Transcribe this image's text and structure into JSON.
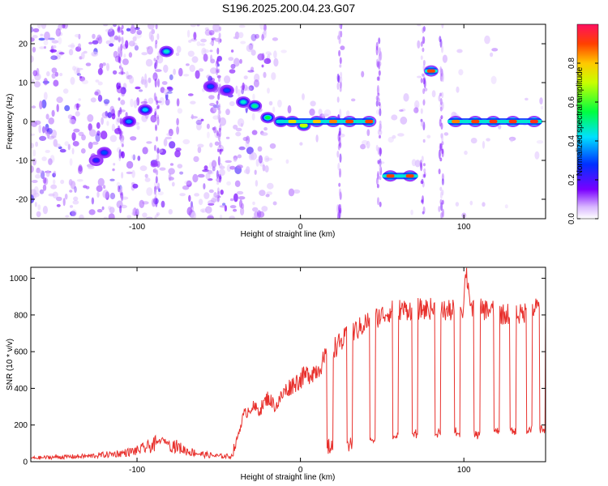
{
  "title": "S196.2025.200.04.23.G07",
  "colors": {
    "snr_line": "#e8302c",
    "axis": "#000000",
    "background": "#ffffff"
  },
  "chart_data": [
    {
      "type": "heatmap",
      "xlabel": "Height of straight line (km)",
      "ylabel": "Frequency (Hz)",
      "xlim": [
        -165,
        150
      ],
      "ylim": [
        -25,
        25
      ],
      "xticks": [
        -100,
        0,
        100
      ],
      "yticks": [
        -20,
        -10,
        0,
        10,
        20
      ],
      "colorbar": {
        "label": "Normalized spectral amplitude",
        "range": [
          0,
          1
        ],
        "ticks": [
          0.0,
          0.2,
          0.4,
          0.6,
          0.8
        ],
        "colormap": "rainbow"
      },
      "ridge": {
        "note": "dominant frequency track (x in km, y in Hz, amplitude 0-1)",
        "points": [
          [
            -125,
            -10,
            0.25
          ],
          [
            -120,
            -8,
            0.3
          ],
          [
            -105,
            0,
            0.35
          ],
          [
            -95,
            3,
            0.4
          ],
          [
            -82,
            18,
            0.45
          ],
          [
            -55,
            9,
            0.3
          ],
          [
            -45,
            8,
            0.3
          ],
          [
            -35,
            5,
            0.45
          ],
          [
            -28,
            4,
            0.5
          ],
          [
            -20,
            1,
            0.55
          ],
          [
            -12,
            0,
            0.6
          ],
          [
            -5,
            0,
            0.75
          ],
          [
            2,
            -1,
            0.7
          ],
          [
            10,
            0,
            0.8
          ],
          [
            20,
            0,
            0.85
          ],
          [
            30,
            0,
            0.9
          ],
          [
            42,
            0,
            0.9
          ],
          [
            55,
            -14,
            0.9
          ],
          [
            67,
            -14,
            0.9
          ],
          [
            80,
            13,
            0.9
          ],
          [
            95,
            0,
            0.85
          ],
          [
            107,
            0,
            0.9
          ],
          [
            118,
            0,
            0.92
          ],
          [
            130,
            0,
            0.92
          ],
          [
            143,
            0,
            0.93
          ]
        ]
      }
    },
    {
      "type": "line",
      "xlabel": "Height of straight line (km)",
      "ylabel": "SNR (10 * v/v)",
      "xlim": [
        -165,
        150
      ],
      "ylim": [
        0,
        1060
      ],
      "xticks": [
        -100,
        0,
        100
      ],
      "yticks": [
        0,
        200,
        400,
        600,
        800,
        1000
      ],
      "series": [
        {
          "x": [
            -165,
            -150,
            -130,
            -110,
            -100,
            -90,
            -85,
            -80,
            -75,
            -70,
            -60,
            -50,
            -42,
            -38,
            -35,
            -30,
            -25,
            -20,
            -15,
            -10,
            -5,
            0,
            5,
            10,
            15,
            20,
            25,
            30,
            35,
            40,
            45,
            50,
            55,
            60,
            65,
            70,
            75,
            80,
            85,
            90,
            95,
            100,
            101,
            105,
            110,
            115,
            120,
            125,
            130,
            135,
            140,
            145,
            150
          ],
          "y": [
            20,
            25,
            30,
            45,
            60,
            90,
            120,
            100,
            80,
            60,
            40,
            30,
            30,
            150,
            250,
            300,
            280,
            350,
            300,
            380,
            420,
            450,
            480,
            500,
            560,
            620,
            650,
            700,
            720,
            760,
            780,
            800,
            820,
            830,
            830,
            835,
            830,
            835,
            830,
            820,
            830,
            840,
            1060,
            820,
            830,
            830,
            820,
            800,
            820,
            800,
            830,
            840,
            820
          ],
          "dips": {
            "x": [
              18,
              30,
              44,
              58,
              70,
              84,
              96,
              108,
              120,
              130,
              140,
              148
            ],
            "y": [
              60,
              80,
              100,
              120,
              130,
              140,
              140,
              130,
              150,
              150,
              160,
              160
            ]
          }
        }
      ]
    }
  ]
}
